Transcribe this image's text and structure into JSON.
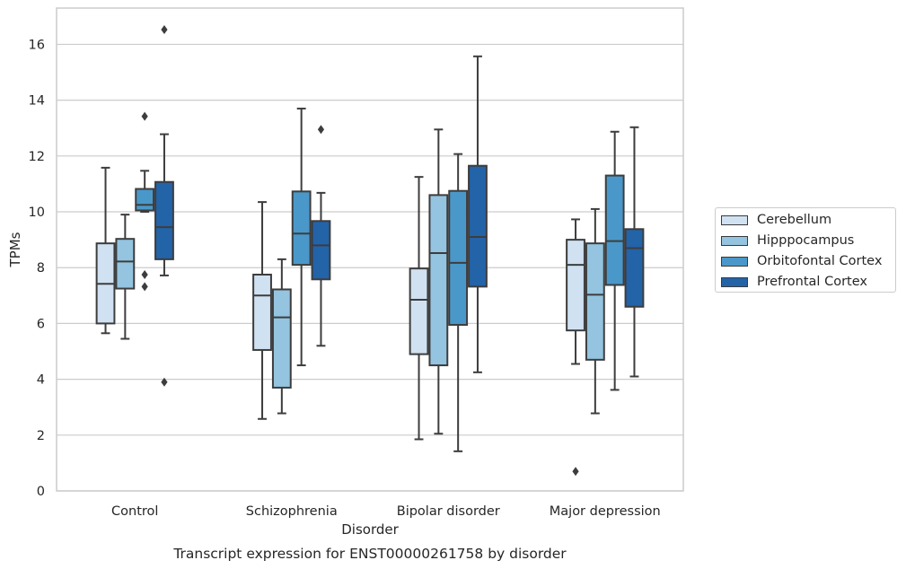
{
  "chart_data": {
    "type": "box",
    "xlabel": "Disorder",
    "ylabel": "TPMs",
    "footer": "Transcript expression for ENST00000261758 by disorder",
    "ylim": [
      0,
      17.3
    ],
    "yticks": [
      0,
      2,
      4,
      6,
      8,
      10,
      12,
      14,
      16
    ],
    "grid": "horizontal",
    "legend_position": "right",
    "categories": [
      "Control",
      "Schizophrenia",
      "Bipolar disorder",
      "Major depression"
    ],
    "series": [
      {
        "name": "Cerebellum",
        "color": "#d0e1f2",
        "boxes": [
          {
            "whisker_low": 5.65,
            "q1": 6.0,
            "median": 7.42,
            "q3": 8.87,
            "whisker_high": 11.58,
            "outliers": []
          },
          {
            "whisker_low": 2.58,
            "q1": 5.05,
            "median": 7.0,
            "q3": 7.75,
            "whisker_high": 10.35,
            "outliers": []
          },
          {
            "whisker_low": 1.85,
            "q1": 4.9,
            "median": 6.85,
            "q3": 7.97,
            "whisker_high": 11.25,
            "outliers": []
          },
          {
            "whisker_low": 4.55,
            "q1": 5.75,
            "median": 8.1,
            "q3": 9.0,
            "whisker_high": 9.73,
            "outliers": [
              0.7
            ]
          }
        ]
      },
      {
        "name": "Hipppocampus",
        "color": "#94c4df",
        "boxes": [
          {
            "whisker_low": 5.45,
            "q1": 7.25,
            "median": 8.22,
            "q3": 9.03,
            "whisker_high": 9.9,
            "outliers": []
          },
          {
            "whisker_low": 2.78,
            "q1": 3.7,
            "median": 6.22,
            "q3": 7.22,
            "whisker_high": 8.3,
            "outliers": []
          },
          {
            "whisker_low": 2.05,
            "q1": 4.5,
            "median": 8.52,
            "q3": 10.6,
            "whisker_high": 12.95,
            "outliers": []
          },
          {
            "whisker_low": 2.78,
            "q1": 4.7,
            "median": 7.03,
            "q3": 8.87,
            "whisker_high": 10.1,
            "outliers": []
          }
        ]
      },
      {
        "name": "Orbitofontal Cortex",
        "color": "#4a98c9",
        "boxes": [
          {
            "whisker_low": 10.0,
            "q1": 10.05,
            "median": 10.25,
            "q3": 10.82,
            "whisker_high": 11.47,
            "outliers": [
              13.42,
              7.75,
              7.32
            ]
          },
          {
            "whisker_low": 4.5,
            "q1": 8.1,
            "median": 9.22,
            "q3": 10.73,
            "whisker_high": 13.7,
            "outliers": []
          },
          {
            "whisker_low": 1.42,
            "q1": 5.95,
            "median": 8.17,
            "q3": 10.75,
            "whisker_high": 12.07,
            "outliers": []
          },
          {
            "whisker_low": 3.62,
            "q1": 7.38,
            "median": 8.95,
            "q3": 11.3,
            "whisker_high": 12.87,
            "outliers": []
          }
        ]
      },
      {
        "name": "Prefrontal Cortex",
        "color": "#2363a8",
        "boxes": [
          {
            "whisker_low": 7.72,
            "q1": 8.3,
            "median": 9.45,
            "q3": 11.07,
            "whisker_high": 12.78,
            "outliers": [
              16.53,
              3.9
            ]
          },
          {
            "whisker_low": 5.2,
            "q1": 7.58,
            "median": 8.8,
            "q3": 9.67,
            "whisker_high": 10.68,
            "outliers": [
              12.95
            ]
          },
          {
            "whisker_low": 4.25,
            "q1": 7.32,
            "median": 9.1,
            "q3": 11.65,
            "whisker_high": 15.57,
            "outliers": []
          },
          {
            "whisker_low": 4.1,
            "q1": 6.6,
            "median": 8.7,
            "q3": 9.38,
            "whisker_high": 13.03,
            "outliers": []
          }
        ]
      }
    ]
  }
}
